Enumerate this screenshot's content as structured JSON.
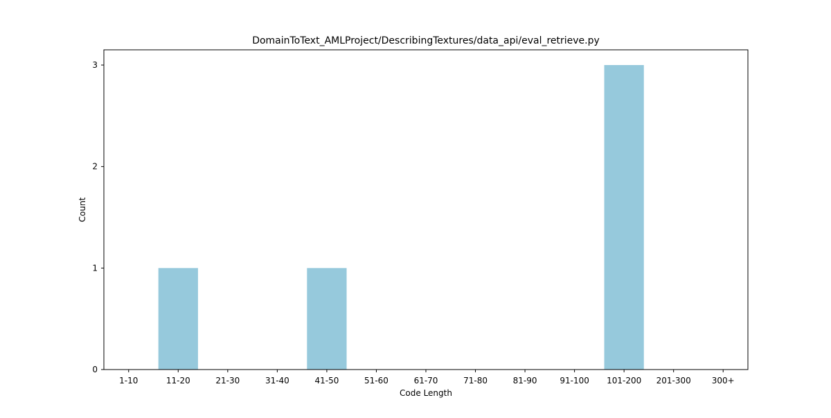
{
  "chart_data": {
    "type": "bar",
    "title": "DomainToText_AMLProject/DescribingTextures/data_api/eval_retrieve.py",
    "xlabel": "Code Length",
    "ylabel": "Count",
    "categories": [
      "1-10",
      "11-20",
      "21-30",
      "31-40",
      "41-50",
      "51-60",
      "61-70",
      "71-80",
      "81-90",
      "91-100",
      "101-200",
      "201-300",
      "300+"
    ],
    "values": [
      0,
      1,
      0,
      0,
      1,
      0,
      0,
      0,
      0,
      0,
      3,
      0,
      0
    ],
    "yticks": [
      "0",
      "1",
      "2",
      "3"
    ],
    "ylim": [
      0,
      3.15
    ],
    "bar_color": "#96c9dc",
    "grid": false,
    "legend": "none"
  }
}
